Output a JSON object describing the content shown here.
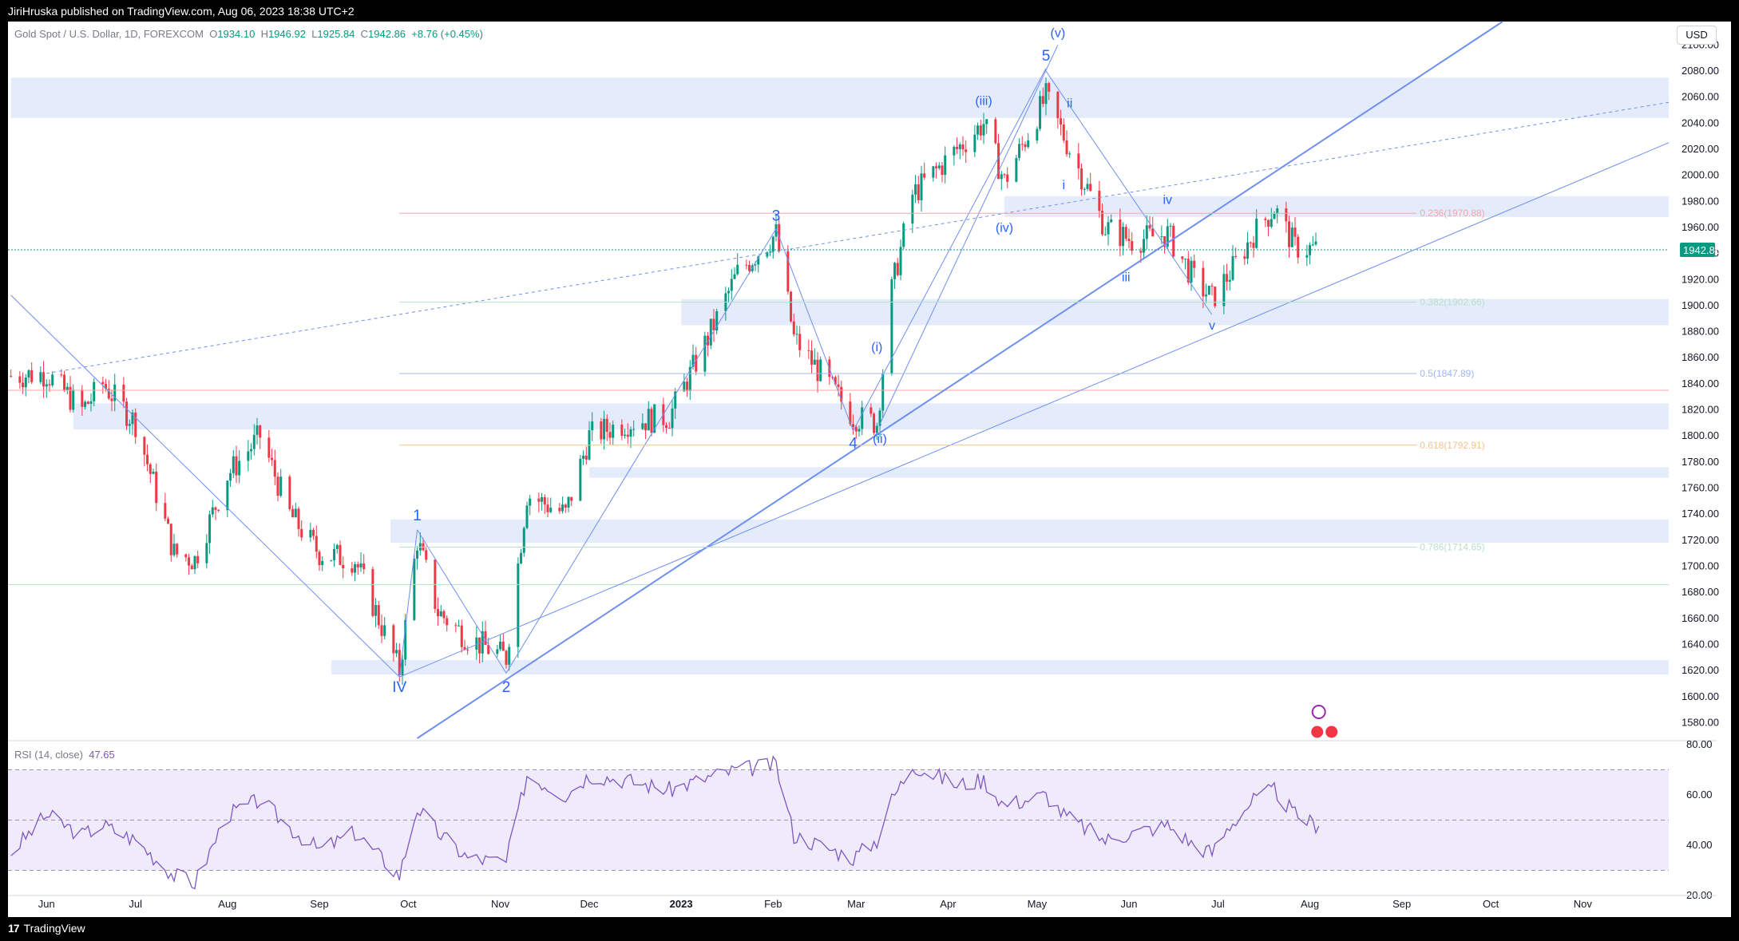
{
  "header": {
    "publisher": "JiriHruska published on TradingView.com, Aug 06, 2023 18:38 UTC+2",
    "footer_brand": "TradingView"
  },
  "legend": {
    "symbol": "Gold Spot / U.S. Dollar, 1D, FOREXCOM",
    "o_label": "O",
    "o_value": "1934.10",
    "h_label": "H",
    "h_value": "1946.92",
    "l_label": "L",
    "l_value": "1925.84",
    "c_label": "C",
    "c_value": "1942.86",
    "change": "+8.76 (+0.45%)"
  },
  "currency_button": "USD",
  "colors": {
    "up": "#089981",
    "down": "#f23645",
    "wave": "#2962ff",
    "zone": "#dbe6fb",
    "rsi": "#7e57c2",
    "rsi_band": "#f0ebfa"
  },
  "chart_data": [
    {
      "type": "candlestick",
      "symbol": "XAUUSD",
      "timeframe": "1D",
      "ylim": [
        1568,
        2118
      ],
      "y_ticks": [
        1580,
        1600,
        1620,
        1640,
        1660,
        1680,
        1700,
        1720,
        1740,
        1760,
        1780,
        1800,
        1820,
        1840,
        1860,
        1880,
        1900,
        1920,
        1940,
        1960,
        1980,
        2000,
        2020,
        2040,
        2060,
        2080,
        2100
      ],
      "x_ticks": [
        "Jun",
        "Jul",
        "Aug",
        "Sep",
        "Oct",
        "Nov",
        "Dec",
        "2023",
        "Feb",
        "Mar",
        "Apr",
        "May",
        "Jun",
        "Jul",
        "Aug",
        "Sep",
        "Oct",
        "Nov"
      ],
      "last_price": "1942.86",
      "close_path": [
        [
          "2022-05-20",
          1846
        ],
        [
          "2022-06-01",
          1848
        ],
        [
          "2022-06-13",
          1820
        ],
        [
          "2022-06-20",
          1840
        ],
        [
          "2022-07-01",
          1810
        ],
        [
          "2022-07-14",
          1710
        ],
        [
          "2022-07-21",
          1705
        ],
        [
          "2022-08-01",
          1770
        ],
        [
          "2022-08-12",
          1800
        ],
        [
          "2022-08-22",
          1740
        ],
        [
          "2022-09-01",
          1710
        ],
        [
          "2022-09-13",
          1705
        ],
        [
          "2022-09-28",
          1620
        ],
        [
          "2022-10-04",
          1720
        ],
        [
          "2022-10-11",
          1665
        ],
        [
          "2022-10-21",
          1645
        ],
        [
          "2022-11-03",
          1630
        ],
        [
          "2022-11-10",
          1755
        ],
        [
          "2022-11-23",
          1740
        ],
        [
          "2022-12-01",
          1800
        ],
        [
          "2022-12-13",
          1810
        ],
        [
          "2022-12-28",
          1815
        ],
        [
          "2023-01-10",
          1875
        ],
        [
          "2023-01-20",
          1925
        ],
        [
          "2023-02-02",
          1955
        ],
        [
          "2023-02-08",
          1875
        ],
        [
          "2023-02-28",
          1815
        ],
        [
          "2023-03-08",
          1810
        ],
        [
          "2023-03-13",
          1912
        ],
        [
          "2023-03-20",
          1985
        ],
        [
          "2023-04-04",
          2020
        ],
        [
          "2023-04-13",
          2040
        ],
        [
          "2023-04-20",
          1995
        ],
        [
          "2023-05-04",
          2060
        ],
        [
          "2023-05-10",
          2030
        ],
        [
          "2023-05-24",
          1960
        ],
        [
          "2023-06-02",
          1950
        ],
        [
          "2023-06-14",
          1955
        ],
        [
          "2023-06-23",
          1920
        ],
        [
          "2023-06-29",
          1905
        ],
        [
          "2023-07-05",
          1925
        ],
        [
          "2023-07-13",
          1955
        ],
        [
          "2023-07-20",
          1975
        ],
        [
          "2023-07-27",
          1945
        ],
        [
          "2023-08-04",
          1942.86
        ]
      ],
      "fib_levels": [
        {
          "ratio": "0.236",
          "price": "1970.88",
          "color": "#f7a6a6"
        },
        {
          "ratio": "0.382",
          "price": "1902.66",
          "color": "#b8e0c6"
        },
        {
          "ratio": "0.5",
          "price": "1847.89",
          "color": "#9fb7f0"
        },
        {
          "ratio": "0.618",
          "price": "1792.91",
          "color": "#f5c28a"
        },
        {
          "ratio": "0.786",
          "price": "1714.65",
          "color": "#b8e0c6"
        }
      ],
      "wave_labels": [
        {
          "text": "IV",
          "date": "2022-09-28",
          "price": 1617
        },
        {
          "text": "1",
          "date": "2022-10-04",
          "price": 1729
        },
        {
          "text": "2",
          "date": "2022-11-03",
          "price": 1617
        },
        {
          "text": "3",
          "date": "2023-02-02",
          "price": 1959
        },
        {
          "text": "4",
          "date": "2023-02-28",
          "price": 1804
        },
        {
          "text": "(i)",
          "date": "2023-03-08",
          "price": 1859
        },
        {
          "text": "(ii)",
          "date": "2023-03-09",
          "price": 1808
        },
        {
          "text": "(iii)",
          "date": "2023-04-13",
          "price": 2048
        },
        {
          "text": "(iv)",
          "date": "2023-04-20",
          "price": 1970
        },
        {
          "text": "5",
          "date": "2023-05-04",
          "price": 2082
        },
        {
          "text": "(v)",
          "date": "2023-05-08",
          "price": 2100
        },
        {
          "text": "i",
          "date": "2023-05-10",
          "price": 2003
        },
        {
          "text": "ii",
          "date": "2023-05-12",
          "price": 2046
        },
        {
          "text": "iii",
          "date": "2023-05-31",
          "price": 1932
        },
        {
          "text": "iv",
          "date": "2023-06-14",
          "price": 1972
        },
        {
          "text": "v",
          "date": "2023-06-29",
          "price": 1895
        }
      ]
    },
    {
      "type": "line",
      "name": "RSI (14, close)",
      "last_value": "47.65",
      "ylim": [
        20,
        80
      ],
      "y_ticks": [
        20.0,
        40.0,
        60.0,
        80.0
      ],
      "bands": [
        30,
        50,
        70
      ],
      "path": [
        [
          "2022-05-20",
          37
        ],
        [
          "2022-06-01",
          52
        ],
        [
          "2022-06-13",
          44
        ],
        [
          "2022-06-20",
          48
        ],
        [
          "2022-07-01",
          42
        ],
        [
          "2022-07-14",
          28
        ],
        [
          "2022-07-21",
          25
        ],
        [
          "2022-08-01",
          52
        ],
        [
          "2022-08-12",
          58
        ],
        [
          "2022-08-22",
          47
        ],
        [
          "2022-09-01",
          38
        ],
        [
          "2022-09-13",
          45
        ],
        [
          "2022-09-28",
          28
        ],
        [
          "2022-10-04",
          55
        ],
        [
          "2022-10-11",
          45
        ],
        [
          "2022-10-21",
          35
        ],
        [
          "2022-11-03",
          33
        ],
        [
          "2022-11-10",
          68
        ],
        [
          "2022-11-23",
          60
        ],
        [
          "2022-12-01",
          68
        ],
        [
          "2022-12-13",
          66
        ],
        [
          "2022-12-28",
          62
        ],
        [
          "2023-01-10",
          67
        ],
        [
          "2023-01-20",
          70
        ],
        [
          "2023-02-02",
          72
        ],
        [
          "2023-02-08",
          44
        ],
        [
          "2023-02-28",
          35
        ],
        [
          "2023-03-08",
          42
        ],
        [
          "2023-03-13",
          58
        ],
        [
          "2023-03-20",
          72
        ],
        [
          "2023-04-04",
          64
        ],
        [
          "2023-04-13",
          66
        ],
        [
          "2023-04-20",
          56
        ],
        [
          "2023-05-04",
          60
        ],
        [
          "2023-05-10",
          52
        ],
        [
          "2023-05-24",
          42
        ],
        [
          "2023-06-02",
          45
        ],
        [
          "2023-06-14",
          48
        ],
        [
          "2023-06-23",
          40
        ],
        [
          "2023-06-29",
          37
        ],
        [
          "2023-07-05",
          48
        ],
        [
          "2023-07-13",
          58
        ],
        [
          "2023-07-20",
          62
        ],
        [
          "2023-07-27",
          52
        ],
        [
          "2023-08-04",
          47.65
        ]
      ]
    }
  ]
}
